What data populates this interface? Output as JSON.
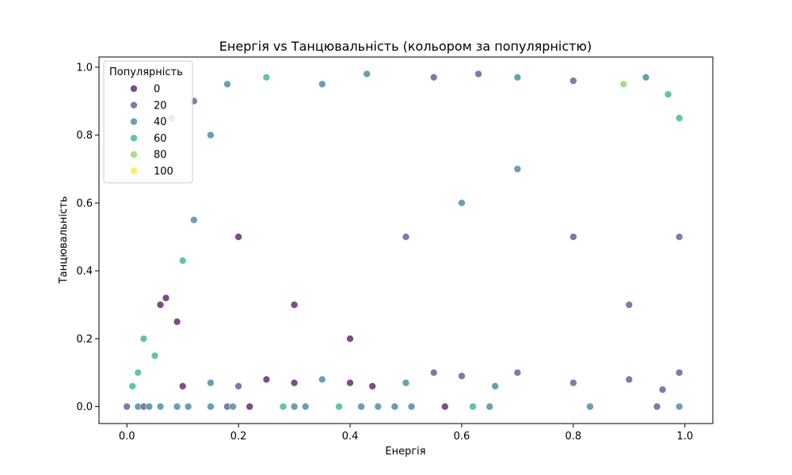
{
  "chart_data": {
    "type": "scatter",
    "title": "Енергія vs Танцювальність (кольором за популярністю)",
    "xlabel": "Енергія",
    "ylabel": "Танцювальність",
    "xlim": [
      -0.05,
      1.05
    ],
    "ylim": [
      -0.05,
      1.03
    ],
    "x_ticks": [
      0.0,
      0.2,
      0.4,
      0.6,
      0.8,
      1.0
    ],
    "x_tick_labels": [
      "0.0",
      "0.2",
      "0.4",
      "0.6",
      "0.8",
      "1.0"
    ],
    "y_ticks": [
      0.0,
      0.2,
      0.4,
      0.6,
      0.8,
      1.0
    ],
    "y_tick_labels": [
      "0.0",
      "0.2",
      "0.4",
      "0.6",
      "0.8",
      "1.0"
    ],
    "grid": false,
    "hue": {
      "title": "Популярність",
      "palette": "viridis",
      "range": [
        0,
        100
      ],
      "legend_values": [
        0,
        20,
        40,
        60,
        80,
        100
      ],
      "legend_labels": [
        "0",
        "20",
        "40",
        "60",
        "80",
        "100"
      ],
      "legend_colors": [
        "#440154",
        "#414487",
        "#2a788e",
        "#22a884",
        "#7ad151",
        "#fde725"
      ],
      "legend_placement": "top-left"
    },
    "point_alpha": 0.7,
    "point_edge_color": "#ffffff",
    "points": [
      [
        0.0,
        0.0,
        20
      ],
      [
        0.02,
        0.0,
        40
      ],
      [
        0.03,
        0.0,
        20
      ],
      [
        0.04,
        0.0,
        40
      ],
      [
        0.06,
        0.0,
        40
      ],
      [
        0.09,
        0.0,
        40
      ],
      [
        0.11,
        0.0,
        40
      ],
      [
        0.15,
        0.0,
        40
      ],
      [
        0.18,
        0.0,
        20
      ],
      [
        0.19,
        0.0,
        40
      ],
      [
        0.22,
        0.0,
        0
      ],
      [
        0.28,
        0.0,
        60
      ],
      [
        0.3,
        0.0,
        40
      ],
      [
        0.32,
        0.0,
        40
      ],
      [
        0.38,
        0.0,
        60
      ],
      [
        0.42,
        0.0,
        40
      ],
      [
        0.45,
        0.0,
        40
      ],
      [
        0.48,
        0.0,
        40
      ],
      [
        0.51,
        0.0,
        40
      ],
      [
        0.57,
        0.0,
        0
      ],
      [
        0.62,
        0.0,
        60
      ],
      [
        0.65,
        0.0,
        40
      ],
      [
        0.83,
        0.0,
        40
      ],
      [
        0.95,
        0.0,
        20
      ],
      [
        0.99,
        0.0,
        40
      ],
      [
        0.01,
        0.06,
        60
      ],
      [
        0.02,
        0.1,
        60
      ],
      [
        0.03,
        0.2,
        60
      ],
      [
        0.05,
        0.15,
        60
      ],
      [
        0.07,
        0.32,
        0
      ],
      [
        0.06,
        0.3,
        0
      ],
      [
        0.09,
        0.25,
        0
      ],
      [
        0.1,
        0.43,
        60
      ],
      [
        0.12,
        0.55,
        40
      ],
      [
        0.15,
        0.8,
        40
      ],
      [
        0.18,
        0.95,
        40
      ],
      [
        0.25,
        0.97,
        60
      ],
      [
        0.35,
        0.95,
        40
      ],
      [
        0.43,
        0.98,
        40
      ],
      [
        0.55,
        0.97,
        20
      ],
      [
        0.63,
        0.98,
        20
      ],
      [
        0.7,
        0.97,
        40
      ],
      [
        0.8,
        0.96,
        20
      ],
      [
        0.89,
        0.95,
        80
      ],
      [
        0.93,
        0.97,
        40
      ],
      [
        0.97,
        0.92,
        60
      ],
      [
        0.99,
        0.85,
        60
      ],
      [
        0.99,
        0.5,
        20
      ],
      [
        0.99,
        0.1,
        20
      ],
      [
        0.96,
        0.05,
        20
      ],
      [
        0.9,
        0.08,
        20
      ],
      [
        0.8,
        0.07,
        20
      ],
      [
        0.7,
        0.1,
        20
      ],
      [
        0.66,
        0.06,
        40
      ],
      [
        0.6,
        0.09,
        20
      ],
      [
        0.55,
        0.1,
        20
      ],
      [
        0.5,
        0.07,
        40
      ],
      [
        0.44,
        0.06,
        0
      ],
      [
        0.4,
        0.07,
        0
      ],
      [
        0.35,
        0.08,
        40
      ],
      [
        0.3,
        0.07,
        0
      ],
      [
        0.25,
        0.08,
        0
      ],
      [
        0.2,
        0.06,
        20
      ],
      [
        0.15,
        0.07,
        40
      ],
      [
        0.1,
        0.06,
        0
      ],
      [
        0.12,
        0.9,
        20
      ],
      [
        0.08,
        0.85,
        20
      ],
      [
        0.2,
        0.5,
        0
      ],
      [
        0.3,
        0.3,
        0
      ],
      [
        0.4,
        0.2,
        0
      ],
      [
        0.5,
        0.5,
        20
      ],
      [
        0.6,
        0.6,
        40
      ],
      [
        0.7,
        0.7,
        40
      ],
      [
        0.8,
        0.5,
        20
      ],
      [
        0.9,
        0.3,
        20
      ]
    ]
  }
}
